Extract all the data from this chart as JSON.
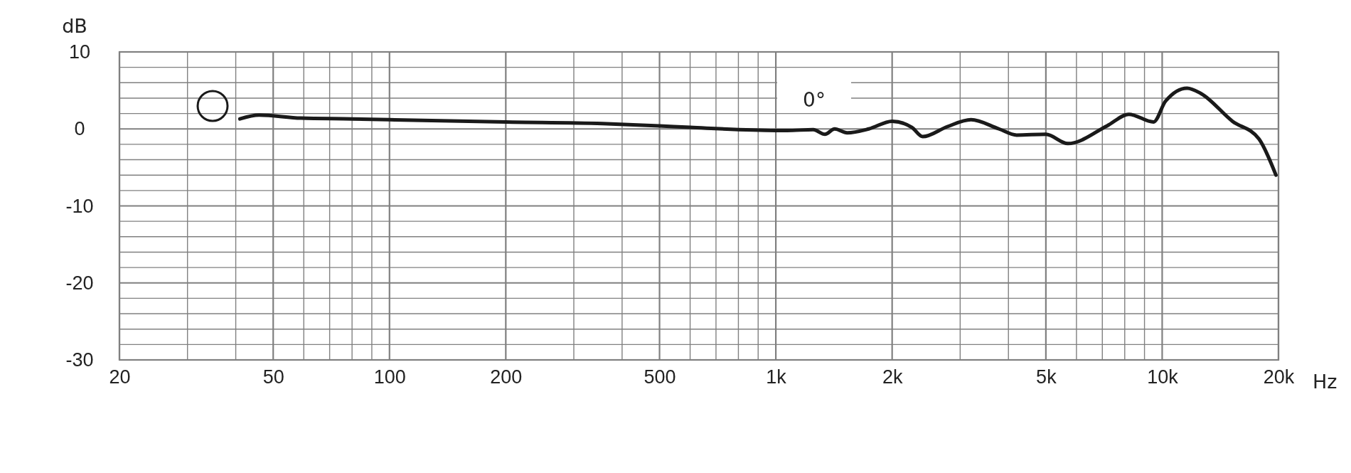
{
  "chart_data": {
    "type": "line",
    "xlabel": "Hz",
    "ylabel": "dB",
    "annotations": [
      "0°"
    ],
    "log": "x",
    "grid": true,
    "marker": "none",
    "line_style": "solid",
    "xlim": [
      20,
      20000
    ],
    "ylim": [
      -30,
      10
    ],
    "xticks": [
      20,
      {
        "value": 30,
        "label": null
      },
      {
        "value": 40,
        "label": null
      },
      50,
      {
        "value": 60,
        "label": null
      },
      {
        "value": 70,
        "label": null
      },
      {
        "value": 80,
        "label": null
      },
      {
        "value": 90,
        "label": null
      },
      100,
      200,
      {
        "value": 300,
        "label": null
      },
      {
        "value": 400,
        "label": null
      },
      500,
      {
        "value": 600,
        "label": null
      },
      {
        "value": 700,
        "label": null
      },
      {
        "value": 800,
        "label": null
      },
      {
        "value": 900,
        "label": null
      },
      {
        "value": 1000,
        "label": "1k"
      },
      {
        "value": 2000,
        "label": "2k"
      },
      {
        "value": 3000,
        "label": null
      },
      {
        "value": 4000,
        "label": null
      },
      {
        "value": 5000,
        "label": "5k"
      },
      {
        "value": 6000,
        "label": null
      },
      {
        "value": 7000,
        "label": null
      },
      {
        "value": 8000,
        "label": null
      },
      {
        "value": 9000,
        "label": null
      },
      {
        "value": 10000,
        "label": "10k"
      },
      {
        "value": 20000,
        "label": "20k"
      }
    ],
    "yticks": [
      10,
      {
        "value": 8,
        "label": null
      },
      {
        "value": 6,
        "label": null
      },
      {
        "value": 4,
        "label": null
      },
      {
        "value": 2,
        "label": null
      },
      0,
      {
        "value": -2,
        "label": null
      },
      {
        "value": -4,
        "label": null
      },
      {
        "value": -6,
        "label": null
      },
      {
        "value": -8,
        "label": null
      },
      -10,
      {
        "value": -12,
        "label": null
      },
      {
        "value": -14,
        "label": null
      },
      {
        "value": -16,
        "label": null
      },
      {
        "value": -18,
        "label": null
      },
      -20,
      {
        "value": -22,
        "label": null
      },
      {
        "value": -24,
        "label": null
      },
      {
        "value": -26,
        "label": null
      },
      {
        "value": -28,
        "label": null
      },
      -30
    ],
    "series": [
      {
        "color": "#1a1a1a",
        "x": [
          41,
          46,
          59,
          80,
          100,
          200,
          356,
          500,
          600,
          1000,
          1070,
          1250,
          1340,
          1420,
          1530,
          1740,
          2000,
          2250,
          2400,
          2780,
          3200,
          3780,
          4200,
          5000,
          5700,
          7200,
          8200,
          9500,
          10200,
          11600,
          12600,
          15200,
          17800,
          19700
        ],
        "values": [
          1.3,
          1.8,
          1.4,
          1.3,
          1.2,
          0.9,
          0.7,
          0.4,
          0.2,
          -0.2,
          -0.2,
          -0.1,
          -0.7,
          0,
          -0.5,
          0,
          1.0,
          0.2,
          -1.0,
          0.3,
          1.2,
          0,
          -0.8,
          -0.7,
          -1.9,
          0.4,
          1.9,
          0.9,
          3.6,
          5.3,
          4.6,
          1.0,
          -1.3,
          -6
        ]
      }
    ]
  }
}
